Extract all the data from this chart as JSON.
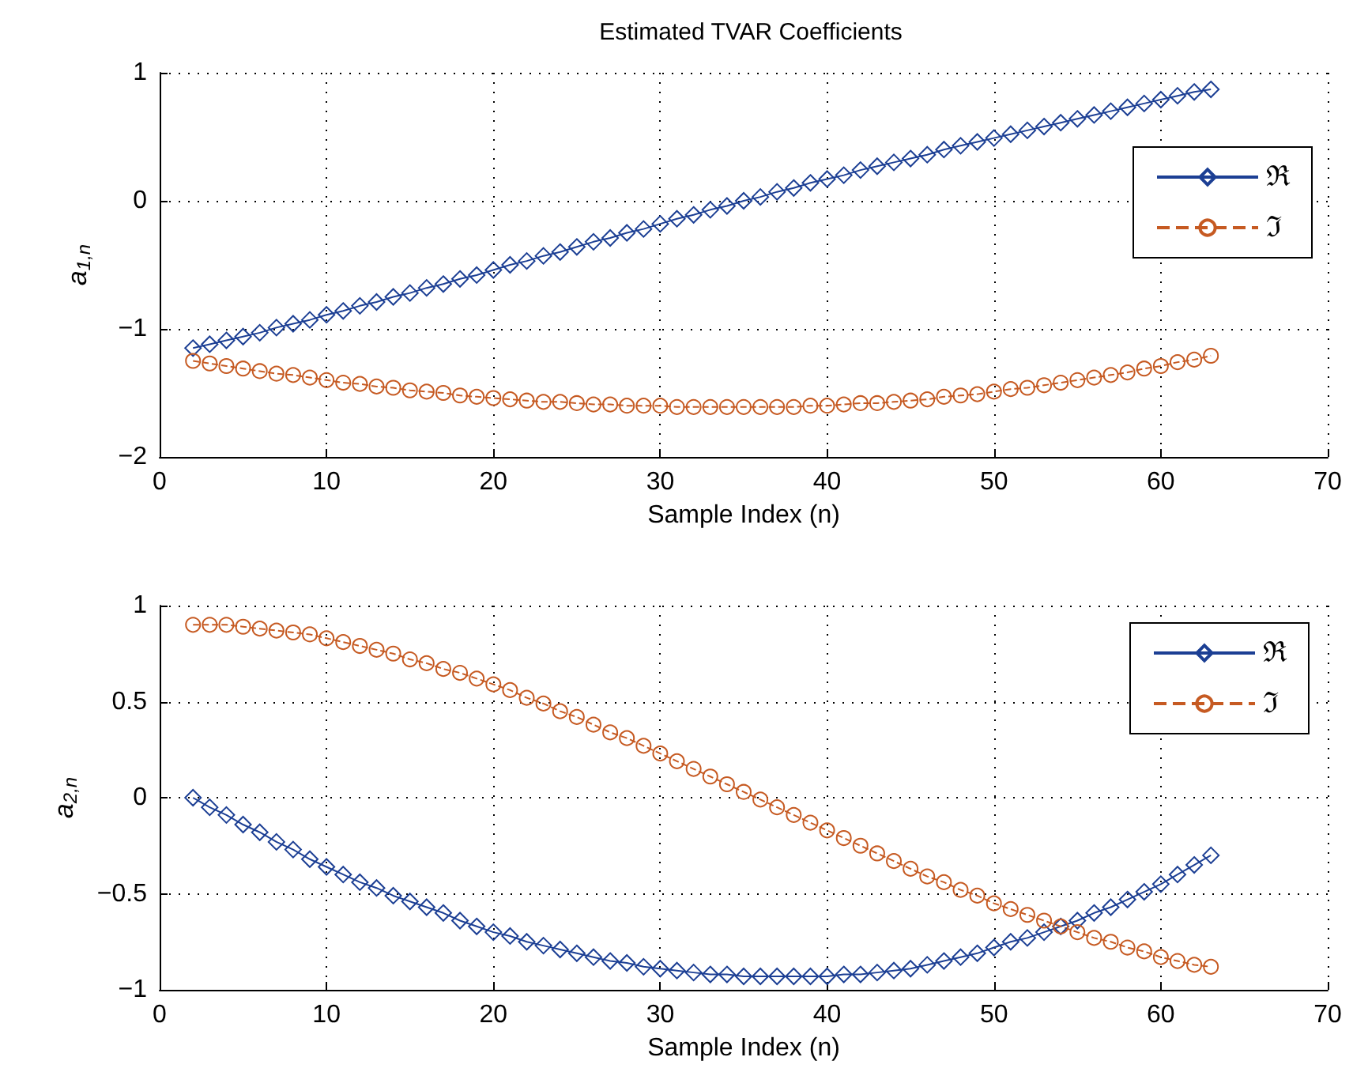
{
  "chart_data": [
    {
      "type": "line",
      "title": "Estimated TVAR Coefficients",
      "xlabel": "Sample Index (n)",
      "ylabel": "a$_{1,n}$",
      "x": [
        2,
        3,
        4,
        5,
        6,
        7,
        8,
        9,
        10,
        11,
        12,
        13,
        14,
        15,
        16,
        17,
        18,
        19,
        20,
        21,
        22,
        23,
        24,
        25,
        26,
        27,
        28,
        29,
        30,
        31,
        32,
        33,
        34,
        35,
        36,
        37,
        38,
        39,
        40,
        41,
        42,
        43,
        44,
        45,
        46,
        47,
        48,
        49,
        50,
        51,
        52,
        53,
        54,
        55,
        56,
        57,
        58,
        59,
        60,
        61,
        62,
        63
      ],
      "series": [
        {
          "name": "ℜ",
          "color": "#1c3f94",
          "marker": "diamond",
          "line_style": "solid",
          "values": [
            -1.15,
            -1.12,
            -1.09,
            -1.06,
            -1.03,
            -0.99,
            -0.96,
            -0.93,
            -0.89,
            -0.86,
            -0.82,
            -0.79,
            -0.75,
            -0.72,
            -0.68,
            -0.65,
            -0.61,
            -0.58,
            -0.54,
            -0.5,
            -0.47,
            -0.43,
            -0.4,
            -0.36,
            -0.32,
            -0.29,
            -0.25,
            -0.22,
            -0.18,
            -0.14,
            -0.11,
            -0.07,
            -0.04,
            0.0,
            0.03,
            0.07,
            0.1,
            0.14,
            0.17,
            0.2,
            0.24,
            0.27,
            0.3,
            0.33,
            0.36,
            0.4,
            0.43,
            0.46,
            0.49,
            0.52,
            0.55,
            0.58,
            0.61,
            0.64,
            0.67,
            0.7,
            0.73,
            0.76,
            0.79,
            0.82,
            0.85,
            0.87
          ]
        },
        {
          "name": "ℑ",
          "color": "#c65a22",
          "marker": "circle",
          "line_style": "dashed",
          "values": [
            -1.25,
            -1.27,
            -1.29,
            -1.31,
            -1.33,
            -1.35,
            -1.36,
            -1.38,
            -1.4,
            -1.42,
            -1.43,
            -1.45,
            -1.46,
            -1.48,
            -1.49,
            -1.5,
            -1.52,
            -1.53,
            -1.54,
            -1.55,
            -1.56,
            -1.57,
            -1.57,
            -1.58,
            -1.59,
            -1.59,
            -1.6,
            -1.6,
            -1.6,
            -1.61,
            -1.61,
            -1.61,
            -1.61,
            -1.61,
            -1.61,
            -1.61,
            -1.61,
            -1.6,
            -1.6,
            -1.59,
            -1.58,
            -1.58,
            -1.57,
            -1.56,
            -1.55,
            -1.53,
            -1.52,
            -1.51,
            -1.49,
            -1.47,
            -1.46,
            -1.44,
            -1.42,
            -1.4,
            -1.38,
            -1.36,
            -1.34,
            -1.31,
            -1.29,
            -1.26,
            -1.24,
            -1.21
          ]
        }
      ],
      "xlim": [
        0,
        70
      ],
      "xticks": [
        0,
        10,
        20,
        30,
        40,
        50,
        60,
        70
      ],
      "ylim": [
        -2,
        1
      ],
      "yticks": [
        -2,
        -1,
        0,
        1
      ],
      "grid": true,
      "legend": "right"
    },
    {
      "type": "line",
      "xlabel": "Sample Index (n)",
      "ylabel": "a$_{2,n}$",
      "x": [
        2,
        3,
        4,
        5,
        6,
        7,
        8,
        9,
        10,
        11,
        12,
        13,
        14,
        15,
        16,
        17,
        18,
        19,
        20,
        21,
        22,
        23,
        24,
        25,
        26,
        27,
        28,
        29,
        30,
        31,
        32,
        33,
        34,
        35,
        36,
        37,
        38,
        39,
        40,
        41,
        42,
        43,
        44,
        45,
        46,
        47,
        48,
        49,
        50,
        51,
        52,
        53,
        54,
        55,
        56,
        57,
        58,
        59,
        60,
        61,
        62,
        63
      ],
      "series": [
        {
          "name": "ℜ",
          "color": "#1c3f94",
          "marker": "diamond",
          "line_style": "solid",
          "values": [
            0.0,
            -0.05,
            -0.09,
            -0.14,
            -0.18,
            -0.23,
            -0.27,
            -0.32,
            -0.36,
            -0.4,
            -0.44,
            -0.47,
            -0.51,
            -0.54,
            -0.57,
            -0.6,
            -0.64,
            -0.67,
            -0.7,
            -0.72,
            -0.75,
            -0.77,
            -0.79,
            -0.81,
            -0.83,
            -0.85,
            -0.86,
            -0.88,
            -0.89,
            -0.9,
            -0.91,
            -0.92,
            -0.92,
            -0.93,
            -0.93,
            -0.93,
            -0.93,
            -0.93,
            -0.93,
            -0.92,
            -0.92,
            -0.91,
            -0.9,
            -0.89,
            -0.87,
            -0.85,
            -0.83,
            -0.81,
            -0.78,
            -0.75,
            -0.73,
            -0.7,
            -0.67,
            -0.64,
            -0.6,
            -0.57,
            -0.53,
            -0.49,
            -0.45,
            -0.4,
            -0.35,
            -0.3
          ]
        },
        {
          "name": "ℑ",
          "color": "#c65a22",
          "marker": "circle",
          "line_style": "dashed",
          "values": [
            0.9,
            0.9,
            0.9,
            0.89,
            0.88,
            0.87,
            0.86,
            0.85,
            0.83,
            0.81,
            0.79,
            0.77,
            0.75,
            0.72,
            0.7,
            0.67,
            0.65,
            0.62,
            0.59,
            0.56,
            0.52,
            0.49,
            0.45,
            0.42,
            0.38,
            0.34,
            0.31,
            0.27,
            0.23,
            0.19,
            0.15,
            0.11,
            0.07,
            0.03,
            -0.01,
            -0.05,
            -0.09,
            -0.13,
            -0.17,
            -0.21,
            -0.25,
            -0.29,
            -0.33,
            -0.37,
            -0.41,
            -0.44,
            -0.48,
            -0.51,
            -0.55,
            -0.58,
            -0.61,
            -0.64,
            -0.67,
            -0.7,
            -0.73,
            -0.75,
            -0.78,
            -0.8,
            -0.83,
            -0.85,
            -0.87,
            -0.88
          ]
        }
      ],
      "xlim": [
        0,
        70
      ],
      "xticks": [
        0,
        10,
        20,
        30,
        40,
        50,
        60,
        70
      ],
      "ylim": [
        -1,
        1
      ],
      "yticks": [
        -1,
        -0.5,
        0,
        0.5,
        1
      ],
      "grid": true,
      "legend": "top right"
    }
  ]
}
